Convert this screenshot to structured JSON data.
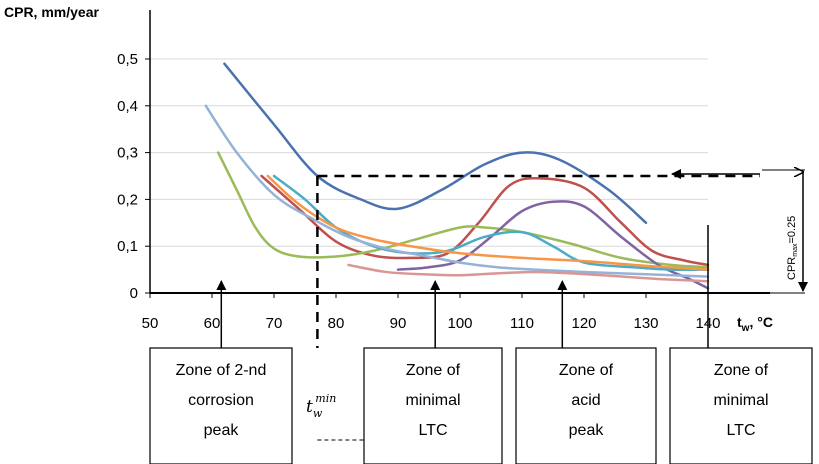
{
  "chart_data": {
    "type": "line",
    "ylabel": "CPR, mm/year",
    "xlabel": "t",
    "xlabel_sub": "w",
    "xlabel_unit": ", °C",
    "xlim": [
      50,
      140
    ],
    "ylim": [
      0,
      0.5
    ],
    "x_ticks": [
      "50",
      "60",
      "70",
      "80",
      "90",
      "100",
      "110",
      "120",
      "130",
      "140"
    ],
    "y_ticks": [
      "0",
      "0,1",
      "0,2",
      "0,3",
      "0,4",
      "0,5"
    ],
    "grid": "horizontal",
    "series": [
      {
        "color": "#4a72b0",
        "points": [
          [
            62,
            0.49
          ],
          [
            70,
            0.36
          ],
          [
            77,
            0.25
          ],
          [
            84,
            0.2
          ],
          [
            90,
            0.18
          ],
          [
            97,
            0.22
          ],
          [
            104,
            0.275
          ],
          [
            110,
            0.3
          ],
          [
            116,
            0.285
          ],
          [
            124,
            0.22
          ],
          [
            130,
            0.15
          ]
        ]
      },
      {
        "color": "#c0504d",
        "points": [
          [
            68,
            0.25
          ],
          [
            74,
            0.18
          ],
          [
            80,
            0.11
          ],
          [
            86,
            0.08
          ],
          [
            92,
            0.075
          ],
          [
            98,
            0.085
          ],
          [
            103,
            0.15
          ],
          [
            108,
            0.23
          ],
          [
            113,
            0.245
          ],
          [
            120,
            0.225
          ],
          [
            126,
            0.15
          ],
          [
            131,
            0.09
          ],
          [
            136,
            0.07
          ],
          [
            140,
            0.06
          ]
        ]
      },
      {
        "color": "#9bbb59",
        "points": [
          [
            61,
            0.3
          ],
          [
            64,
            0.22
          ],
          [
            67,
            0.14
          ],
          [
            70,
            0.095
          ],
          [
            74,
            0.078
          ],
          [
            80,
            0.078
          ],
          [
            86,
            0.09
          ],
          [
            93,
            0.115
          ],
          [
            100,
            0.14
          ],
          [
            104,
            0.14
          ],
          [
            110,
            0.13
          ],
          [
            118,
            0.105
          ],
          [
            126,
            0.075
          ],
          [
            134,
            0.06
          ],
          [
            140,
            0.055
          ]
        ]
      },
      {
        "color": "#8064a2",
        "points": [
          [
            90,
            0.05
          ],
          [
            95,
            0.055
          ],
          [
            100,
            0.07
          ],
          [
            105,
            0.12
          ],
          [
            110,
            0.175
          ],
          [
            115,
            0.195
          ],
          [
            120,
            0.185
          ],
          [
            126,
            0.12
          ],
          [
            132,
            0.06
          ],
          [
            137,
            0.03
          ],
          [
            140,
            0.01
          ]
        ]
      },
      {
        "color": "#4bacc6",
        "points": [
          [
            70,
            0.25
          ],
          [
            75,
            0.2
          ],
          [
            80,
            0.14
          ],
          [
            86,
            0.1
          ],
          [
            92,
            0.085
          ],
          [
            98,
            0.09
          ],
          [
            104,
            0.12
          ],
          [
            110,
            0.13
          ],
          [
            115,
            0.1
          ],
          [
            120,
            0.065
          ],
          [
            128,
            0.055
          ],
          [
            134,
            0.05
          ],
          [
            140,
            0.05
          ]
        ]
      },
      {
        "color": "#f79646",
        "points": [
          [
            69,
            0.25
          ],
          [
            74,
            0.19
          ],
          [
            80,
            0.14
          ],
          [
            86,
            0.115
          ],
          [
            92,
            0.1
          ],
          [
            100,
            0.085
          ],
          [
            110,
            0.075
          ],
          [
            120,
            0.068
          ],
          [
            130,
            0.058
          ],
          [
            140,
            0.05
          ]
        ]
      },
      {
        "color": "#95b3d7",
        "points": [
          [
            59,
            0.4
          ],
          [
            64,
            0.3
          ],
          [
            70,
            0.21
          ],
          [
            76,
            0.16
          ],
          [
            82,
            0.12
          ],
          [
            88,
            0.095
          ],
          [
            94,
            0.08
          ],
          [
            100,
            0.065
          ],
          [
            106,
            0.055
          ],
          [
            112,
            0.05
          ],
          [
            120,
            0.045
          ],
          [
            130,
            0.04
          ],
          [
            140,
            0.035
          ]
        ]
      },
      {
        "color": "#d99694",
        "points": [
          [
            82,
            0.06
          ],
          [
            88,
            0.045
          ],
          [
            94,
            0.04
          ],
          [
            100,
            0.038
          ],
          [
            106,
            0.042
          ],
          [
            112,
            0.045
          ],
          [
            118,
            0.042
          ],
          [
            124,
            0.037
          ],
          [
            132,
            0.03
          ],
          [
            140,
            0.025
          ]
        ]
      }
    ],
    "annotations": {
      "cpr_max_label": "CPR",
      "cpr_max_sub": "max",
      "cpr_max_value": "=0.25",
      "cpr_max_level": 0.25,
      "tmin_x": 77,
      "tmin_label_t": "t",
      "tmin_label_sub": "w",
      "tmin_label_sup": "min",
      "arrow_x": [
        61.5,
        96,
        116.5
      ]
    }
  },
  "zones": [
    {
      "lines": [
        "Zone of 2-nd",
        "corrosion",
        "peak"
      ]
    },
    {
      "lines": [
        "Zone of",
        "minimal",
        "LTC"
      ]
    },
    {
      "lines": [
        "Zone of",
        "acid",
        "peak"
      ]
    },
    {
      "lines": [
        "Zone of",
        "minimal",
        "LTC"
      ]
    }
  ]
}
